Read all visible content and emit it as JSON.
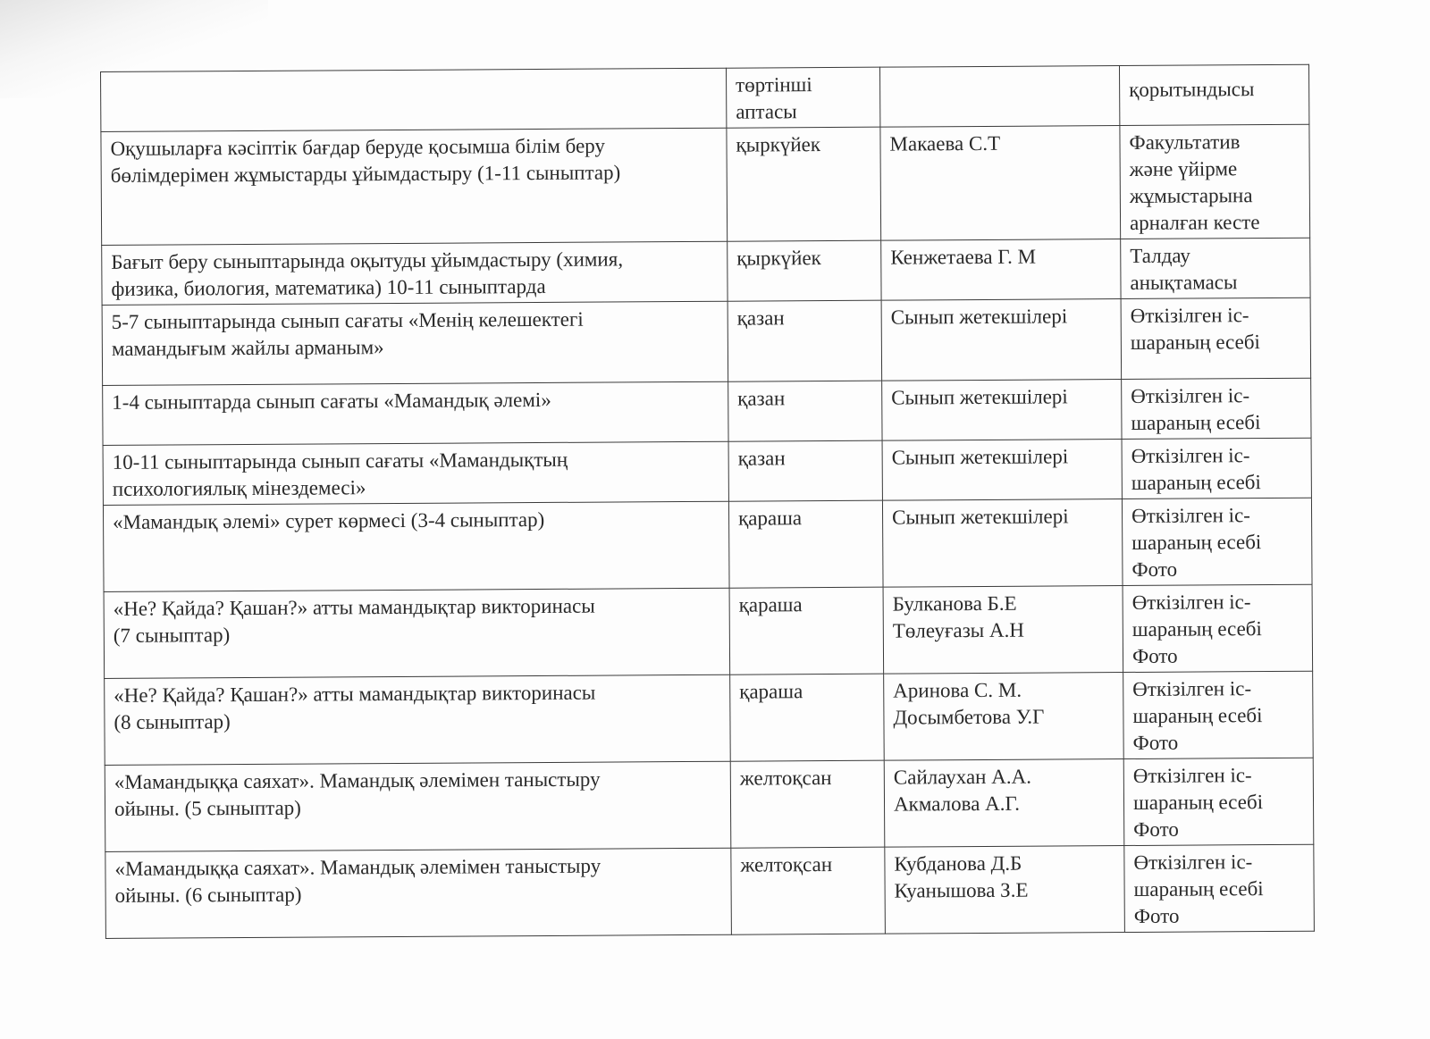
{
  "header": [
    "",
    "төртінші\nаптасы",
    "",
    "қорытындысы"
  ],
  "rows": [
    [
      "Оқушыларға кәсіптік бағдар беруде қосымша білім беру\nбөлімдерімен жұмыстарды ұйымдастыру  (1-11 сыныптар)",
      "қыркүйек",
      "Макаева С.Т",
      "Факультатив\nжәне үйірме\nжұмыстарына\nарналған кесте"
    ],
    [
      "Бағыт беру сыныптарында оқытуды ұйымдастыру (химия,\nфизика, биология, математика) 10-11 сыныптарда",
      "қыркүйек",
      "Кенжетаева Г. М",
      "Талдау\nанықтамасы"
    ],
    [
      "5-7 сыныптарында сынып сағаты  «Менің келешектегі\nмамандығым жайлы арманым»",
      "қазан",
      "Сынып жетекшілері",
      "Өткізілген іс-\nшараның есебі"
    ],
    [
      "1-4  сыныптарда сынып сағаты  «Мамандық әлемі»",
      "қазан",
      "Сынып жетекшілері",
      "Өткізілген іс-\nшараның есебі"
    ],
    [
      "10-11 сыныптарында сынып сағаты  «Мамандықтың\nпсихологиялық мінездемесі»",
      "қазан",
      "Сынып жетекшілері",
      "Өткізілген іс-\nшараның есебі"
    ],
    [
      "«Мамандық әлемі» сурет көрмесі (3-4 сыныптар)",
      "қараша",
      "Сынып жетекшілері",
      "Өткізілген іс-\nшараның есебі\nФото"
    ],
    [
      "«Не? Қайда? Қашан?» атты мамандықтар  викторинасы\n(7 сыныптар)",
      "қараша",
      "Булканова Б.Е\nТөлеуғазы А.Н",
      "Өткізілген іс-\nшараның есебі\nФото"
    ],
    [
      "«Не? Қайда? Қашан?» атты мамандықтар  викторинасы\n(8 сыныптар)",
      "қараша",
      "Аринова С. М.\nДосымбетова У.Г",
      "Өткізілген іс-\nшараның есебі\nФото"
    ],
    [
      "«Мамандыққа саяхат». Мамандық әлемімен таныстыру\nойыны.  (5 сыныптар)",
      "желтоқсан",
      "Сайлаухан А.А.\nАкмалова А.Г.",
      "Өткізілген іс-\nшараның есебі\nФото"
    ],
    [
      "«Мамандыққа саяхат». Мамандық әлемімен таныстыру\nойыны.  (6 сыныптар)",
      "желтоқсан",
      "Кубданова Д.Б\nКуанышова З.Е",
      "Өткізілген іс-\nшараның есебі\nФото"
    ]
  ]
}
